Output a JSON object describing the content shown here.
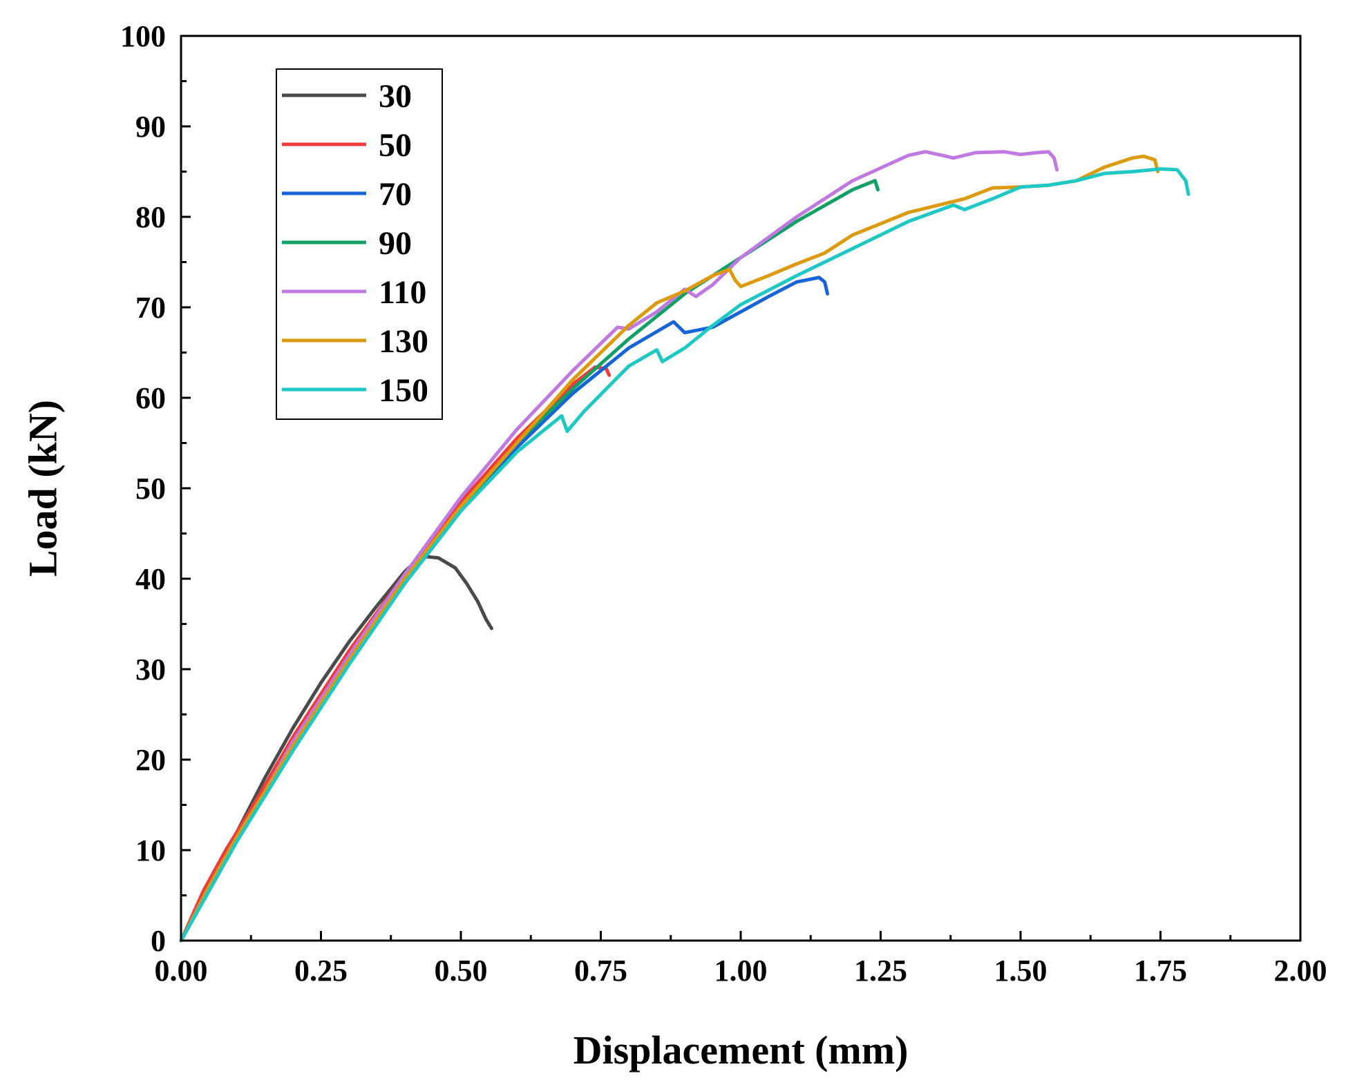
{
  "chart_data": {
    "type": "line",
    "title": "",
    "xlabel": "Displacement (mm)",
    "ylabel": "Load (kN)",
    "xlim": [
      0,
      2.0
    ],
    "ylim": [
      0,
      100
    ],
    "x_ticks": [
      0,
      0.25,
      0.5,
      0.75,
      1.0,
      1.25,
      1.5,
      1.75,
      2.0
    ],
    "x_tick_labels": [
      "0.00",
      "0.25",
      "0.50",
      "0.75",
      "1.00",
      "1.25",
      "1.50",
      "1.75",
      "2.00"
    ],
    "y_ticks": [
      0,
      10,
      20,
      30,
      40,
      50,
      60,
      70,
      80,
      90,
      100
    ],
    "y_tick_labels": [
      "0",
      "10",
      "20",
      "30",
      "40",
      "50",
      "60",
      "70",
      "80",
      "90",
      "100"
    ],
    "grid": false,
    "legend_position": "top-left",
    "series": [
      {
        "name": "30",
        "color": "#4a4a4a",
        "points": [
          [
            0,
            0
          ],
          [
            0.05,
            6
          ],
          [
            0.1,
            12
          ],
          [
            0.15,
            18
          ],
          [
            0.2,
            23.5
          ],
          [
            0.25,
            28.5
          ],
          [
            0.3,
            33
          ],
          [
            0.35,
            37
          ],
          [
            0.4,
            40.8
          ],
          [
            0.43,
            42.5
          ],
          [
            0.46,
            42.3
          ],
          [
            0.49,
            41.2
          ],
          [
            0.51,
            39.5
          ],
          [
            0.53,
            37.5
          ],
          [
            0.545,
            35.5
          ],
          [
            0.555,
            34.5
          ]
        ]
      },
      {
        "name": "50",
        "color": "#ef3b3b",
        "points": [
          [
            0,
            0
          ],
          [
            0.04,
            5.5
          ],
          [
            0.08,
            10
          ],
          [
            0.12,
            14
          ],
          [
            0.2,
            22.5
          ],
          [
            0.3,
            32
          ],
          [
            0.4,
            40.5
          ],
          [
            0.5,
            48.5
          ],
          [
            0.6,
            55.5
          ],
          [
            0.7,
            61.5
          ],
          [
            0.74,
            63.4
          ],
          [
            0.76,
            63.2
          ],
          [
            0.765,
            62.5
          ]
        ]
      },
      {
        "name": "70",
        "color": "#1763d8",
        "points": [
          [
            0,
            0
          ],
          [
            0.05,
            6
          ],
          [
            0.1,
            11.5
          ],
          [
            0.2,
            21.5
          ],
          [
            0.3,
            31
          ],
          [
            0.4,
            39.5
          ],
          [
            0.5,
            47.5
          ],
          [
            0.6,
            54.5
          ],
          [
            0.7,
            60.5
          ],
          [
            0.8,
            65.5
          ],
          [
            0.88,
            68.4
          ],
          [
            0.9,
            67.2
          ],
          [
            0.95,
            67.8
          ],
          [
            1.0,
            69.5
          ],
          [
            1.05,
            71.2
          ],
          [
            1.1,
            72.8
          ],
          [
            1.14,
            73.3
          ],
          [
            1.15,
            72.8
          ],
          [
            1.155,
            71.5
          ]
        ]
      },
      {
        "name": "90",
        "color": "#11a065",
        "points": [
          [
            0,
            0
          ],
          [
            0.05,
            6
          ],
          [
            0.1,
            11.5
          ],
          [
            0.2,
            21.5
          ],
          [
            0.3,
            31
          ],
          [
            0.4,
            39.8
          ],
          [
            0.5,
            47.8
          ],
          [
            0.6,
            55
          ],
          [
            0.7,
            61
          ],
          [
            0.8,
            66.5
          ],
          [
            0.9,
            71.5
          ],
          [
            1.0,
            75.5
          ],
          [
            1.1,
            79.5
          ],
          [
            1.2,
            83
          ],
          [
            1.24,
            84
          ],
          [
            1.245,
            83
          ]
        ]
      },
      {
        "name": "110",
        "color": "#c079e0",
        "points": [
          [
            0,
            0
          ],
          [
            0.05,
            5.5
          ],
          [
            0.1,
            11
          ],
          [
            0.2,
            22
          ],
          [
            0.3,
            31.5
          ],
          [
            0.4,
            40.5
          ],
          [
            0.5,
            49
          ],
          [
            0.6,
            56.5
          ],
          [
            0.7,
            63
          ],
          [
            0.78,
            67.8
          ],
          [
            0.8,
            67.6
          ],
          [
            0.85,
            69.5
          ],
          [
            0.9,
            72
          ],
          [
            0.92,
            71.2
          ],
          [
            0.95,
            72.5
          ],
          [
            1.0,
            75.5
          ],
          [
            1.1,
            80
          ],
          [
            1.2,
            84
          ],
          [
            1.3,
            86.8
          ],
          [
            1.33,
            87.2
          ],
          [
            1.36,
            86.8
          ],
          [
            1.38,
            86.5
          ],
          [
            1.42,
            87.1
          ],
          [
            1.47,
            87.2
          ],
          [
            1.5,
            86.9
          ],
          [
            1.53,
            87.1
          ],
          [
            1.55,
            87.2
          ],
          [
            1.56,
            86.5
          ],
          [
            1.565,
            85.2
          ]
        ]
      },
      {
        "name": "130",
        "color": "#dc9a0e",
        "points": [
          [
            0,
            0
          ],
          [
            0.05,
            6
          ],
          [
            0.1,
            11.5
          ],
          [
            0.2,
            21.5
          ],
          [
            0.3,
            31
          ],
          [
            0.4,
            40
          ],
          [
            0.5,
            48
          ],
          [
            0.6,
            55
          ],
          [
            0.7,
            62
          ],
          [
            0.8,
            68
          ],
          [
            0.85,
            70.5
          ],
          [
            0.9,
            71.8
          ],
          [
            0.95,
            73.5
          ],
          [
            0.98,
            74.2
          ],
          [
            0.99,
            73
          ],
          [
            1.0,
            72.3
          ],
          [
            1.05,
            73.5
          ],
          [
            1.1,
            74.8
          ],
          [
            1.15,
            76
          ],
          [
            1.2,
            78
          ],
          [
            1.3,
            80.5
          ],
          [
            1.4,
            82
          ],
          [
            1.45,
            83.2
          ],
          [
            1.5,
            83.3
          ],
          [
            1.55,
            83.5
          ],
          [
            1.6,
            84
          ],
          [
            1.65,
            85.5
          ],
          [
            1.7,
            86.5
          ],
          [
            1.72,
            86.7
          ],
          [
            1.74,
            86.3
          ],
          [
            1.745,
            85
          ]
        ]
      },
      {
        "name": "150",
        "color": "#1ec8c4",
        "points": [
          [
            0,
            0
          ],
          [
            0.05,
            5.5
          ],
          [
            0.1,
            11
          ],
          [
            0.2,
            21
          ],
          [
            0.3,
            30.5
          ],
          [
            0.4,
            39.5
          ],
          [
            0.5,
            47.5
          ],
          [
            0.6,
            54
          ],
          [
            0.68,
            58
          ],
          [
            0.69,
            56.3
          ],
          [
            0.72,
            58.5
          ],
          [
            0.8,
            63.5
          ],
          [
            0.85,
            65.3
          ],
          [
            0.86,
            64
          ],
          [
            0.9,
            65.5
          ],
          [
            0.95,
            68
          ],
          [
            1.0,
            70.3
          ],
          [
            1.1,
            73.5
          ],
          [
            1.2,
            76.5
          ],
          [
            1.3,
            79.5
          ],
          [
            1.38,
            81.3
          ],
          [
            1.4,
            80.8
          ],
          [
            1.45,
            82
          ],
          [
            1.5,
            83.3
          ],
          [
            1.55,
            83.5
          ],
          [
            1.6,
            84
          ],
          [
            1.65,
            84.8
          ],
          [
            1.7,
            85
          ],
          [
            1.75,
            85.3
          ],
          [
            1.78,
            85.2
          ],
          [
            1.795,
            84
          ],
          [
            1.8,
            82.5
          ]
        ]
      }
    ]
  }
}
